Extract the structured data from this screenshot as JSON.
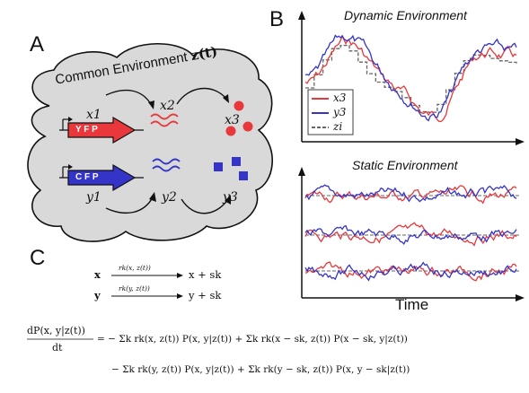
{
  "panels": {
    "a": "A",
    "b": "B",
    "c": "C"
  },
  "panel_a": {
    "env_label": "Common Environment",
    "env_symbol": "z(t)",
    "gene1_text": "Y F P",
    "gene2_text": "C F P",
    "x1": "x1",
    "x2": "x2",
    "x3": "x3",
    "y1": "y1",
    "y2": "y2",
    "y3": "y3",
    "colors": {
      "red": "#e8383b",
      "blue": "#3434c8",
      "cloud": "#d9d9d9"
    }
  },
  "panel_b": {
    "dynamic_title": "Dynamic Environment",
    "static_title": "Static Environment",
    "xlabel": "Time",
    "legend": [
      "x3",
      "y3",
      "zi"
    ],
    "colors": {
      "x": "#e8383b",
      "y": "#3434c8",
      "z": "#666666"
    }
  },
  "panel_c": {
    "reaction1_lhs": "x",
    "reaction1_rate": "rk(x, z(t))",
    "reaction1_rhs": "x + sk",
    "reaction2_lhs": "y",
    "reaction2_rate": "rk(y, z(t))",
    "reaction2_rhs": "y + sk",
    "master_lhs_num": "dP(x, y|z(t))",
    "master_lhs_den": "dt",
    "master_line1": "= − Σk rk(x, z(t)) P(x, y|z(t)) + Σk rk(x − sk, z(t)) P(x − sk, y|z(t))",
    "master_line2": "− Σk rk(y, z(t)) P(x, y|z(t)) + Σk rk(y − sk, z(t)) P(x, y − sk|z(t))"
  }
}
